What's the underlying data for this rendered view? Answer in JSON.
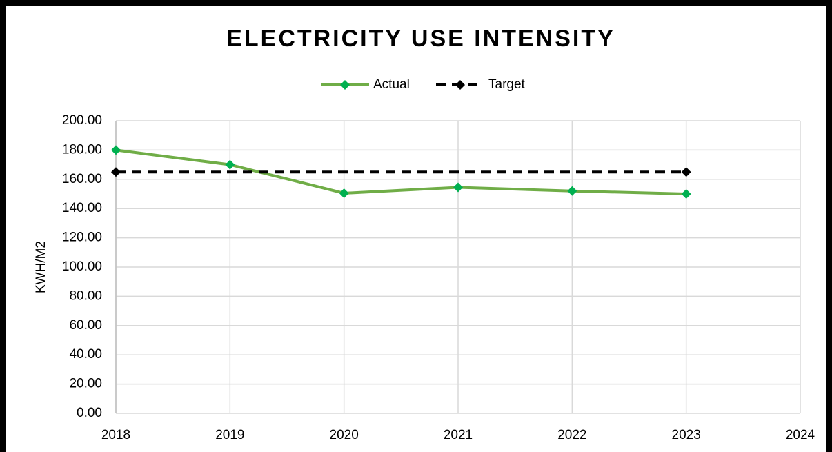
{
  "chart_data": {
    "type": "line",
    "title": "ELECTRICITY USE INTENSITY",
    "y_label": "KWH/M2",
    "series": [
      {
        "name": "Actual",
        "color": "#70ad47",
        "marker_color": "#00b050",
        "x": [
          2018,
          2019,
          2020,
          2021,
          2022,
          2023
        ],
        "values": [
          180,
          170,
          150.5,
          154.5,
          152,
          150
        ],
        "dashed": false
      },
      {
        "name": "Target",
        "color": "#000000",
        "marker_color": "#000000",
        "x": [
          2018,
          2023
        ],
        "values": [
          165,
          165
        ],
        "dashed": true
      }
    ],
    "xlim": [
      2018,
      2024
    ],
    "xticks": [
      2018,
      2019,
      2020,
      2021,
      2022,
      2023,
      2024
    ],
    "ylim": [
      0,
      200
    ],
    "yticks": [
      {
        "value": 0,
        "label": "0.00"
      },
      {
        "value": 20,
        "label": "20.00"
      },
      {
        "value": 40,
        "label": "40.00"
      },
      {
        "value": 60,
        "label": "60.00"
      },
      {
        "value": 80,
        "label": "80.00"
      },
      {
        "value": 100,
        "label": "100.00"
      },
      {
        "value": 120,
        "label": "120.00"
      },
      {
        "value": 140,
        "label": "140.00"
      },
      {
        "value": 160,
        "label": "160.00"
      },
      {
        "value": 180,
        "label": "180.00"
      },
      {
        "value": 200,
        "label": "200.00"
      }
    ],
    "grid": true,
    "legend": "top"
  }
}
